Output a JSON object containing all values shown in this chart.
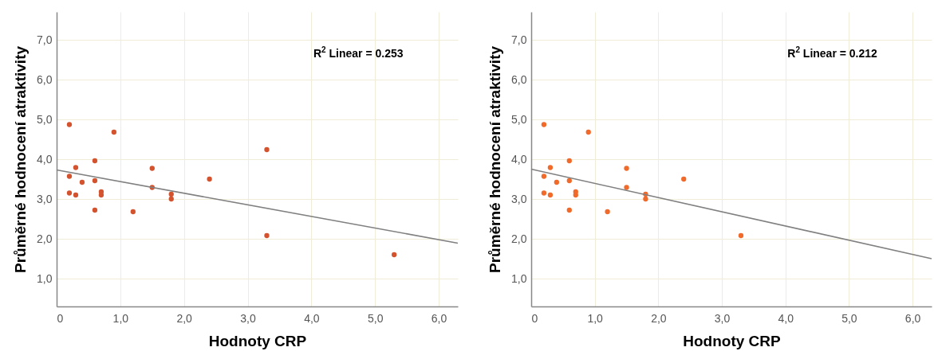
{
  "chart_data": [
    {
      "type": "scatter",
      "xlabel": "Hodnoty CRP",
      "ylabel": "Průměrné hodnocení atraktivity",
      "annotations": [
        "R$^{2}$ Linear = 0.253"
      ],
      "xlim": [
        0,
        6.3
      ],
      "ylim": [
        0.3,
        7.7
      ],
      "xticks": [
        0,
        {
          "value": 1,
          "label": "1,0"
        },
        {
          "value": 2,
          "label": "2,0"
        },
        {
          "value": 3,
          "label": "3,0"
        },
        {
          "value": 4,
          "label": "4,0"
        },
        {
          "value": 5,
          "label": "5,0"
        },
        {
          "value": 6,
          "label": "6,0"
        }
      ],
      "yticks": [
        {
          "value": 1,
          "label": "1,0"
        },
        {
          "value": 2,
          "label": "2,0"
        },
        {
          "value": 3,
          "label": "3,0"
        },
        {
          "value": 4,
          "label": "4,0"
        },
        {
          "value": 5,
          "label": "5,0"
        },
        {
          "value": 6,
          "label": "6,0"
        },
        {
          "value": 7,
          "label": "7,0"
        }
      ],
      "grid": true,
      "series": [
        {
          "marker": "circle",
          "color": "#d4532f",
          "x": [
            0.2,
            0.9,
            0.2,
            0.3,
            0.6,
            0.2,
            0.3,
            0.4,
            0.6,
            0.6,
            0.7,
            0.7,
            1.2,
            1.5,
            1.5,
            1.8,
            1.8,
            2.4,
            3.3,
            3.3,
            5.3
          ],
          "values": [
            4.87,
            4.68,
            3.57,
            3.79,
            3.96,
            3.15,
            3.1,
            3.42,
            3.46,
            2.72,
            3.18,
            3.1,
            2.68,
            3.77,
            3.29,
            3.12,
            3.0,
            3.5,
            4.24,
            2.08,
            1.6
          ]
        },
        {
          "type": "line",
          "color": "#808080",
          "x": [
            0,
            6.3
          ],
          "values": [
            3.73,
            1.89
          ]
        }
      ]
    },
    {
      "type": "scatter",
      "xlabel": "Hodnoty CRP",
      "ylabel": "Průměrné hodnocení atraktivity",
      "annotations": [
        "R$^{2}$ Linear = 0.212"
      ],
      "xlim": [
        0,
        6.3
      ],
      "ylim": [
        0.3,
        7.7
      ],
      "xticks": [
        0,
        {
          "value": 1,
          "label": "1,0"
        },
        {
          "value": 2,
          "label": "2,0"
        },
        {
          "value": 3,
          "label": "3,0"
        },
        {
          "value": 4,
          "label": "4,0"
        },
        {
          "value": 5,
          "label": "5,0"
        },
        {
          "value": 6,
          "label": "6,0"
        }
      ],
      "yticks": [
        {
          "value": 1,
          "label": "1,0"
        },
        {
          "value": 2,
          "label": "2,0"
        },
        {
          "value": 3,
          "label": "3,0"
        },
        {
          "value": 4,
          "label": "4,0"
        },
        {
          "value": 5,
          "label": "5,0"
        },
        {
          "value": 6,
          "label": "6,0"
        },
        {
          "value": 7,
          "label": "7,0"
        }
      ],
      "grid": true,
      "series": [
        {
          "marker": "circle",
          "color": "#f26a2a",
          "x": [
            0.2,
            0.9,
            0.2,
            0.3,
            0.6,
            0.2,
            0.3,
            0.4,
            0.6,
            0.6,
            0.7,
            0.7,
            1.2,
            1.5,
            1.5,
            1.8,
            1.8,
            2.4,
            3.3
          ],
          "values": [
            4.87,
            4.68,
            3.57,
            3.79,
            3.96,
            3.15,
            3.1,
            3.42,
            3.46,
            2.72,
            3.18,
            3.1,
            2.68,
            3.77,
            3.29,
            3.12,
            3.0,
            3.5,
            2.08
          ]
        },
        {
          "type": "line",
          "color": "#808080",
          "x": [
            0,
            6.3
          ],
          "values": [
            3.75,
            1.5
          ]
        }
      ]
    }
  ]
}
